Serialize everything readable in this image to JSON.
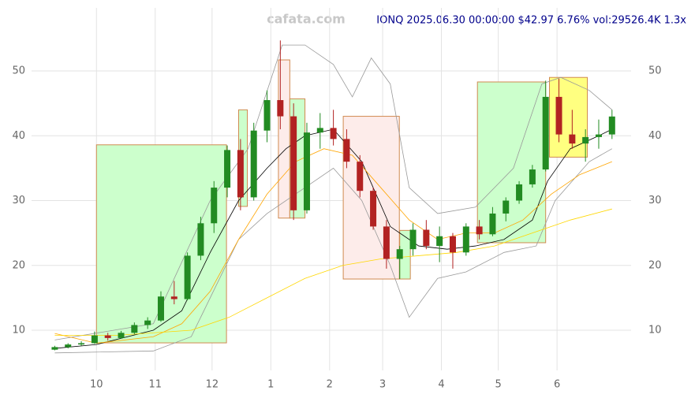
{
  "chart_data": {
    "type": "candlestick",
    "title": "IONQ 2025.06.30 00:00:00 $42.97 6.76% vol:29526.4K 1.3x",
    "watermark": "cafata.com",
    "xlim": [
      -3,
      305
    ],
    "ylim": [
      5.6,
      60
    ],
    "xticks": [
      {
        "value": 30,
        "label": "10"
      },
      {
        "value": 61,
        "label": "11"
      },
      {
        "value": 91,
        "label": "12"
      },
      {
        "value": 122,
        "label": "1"
      },
      {
        "value": 153,
        "label": "2"
      },
      {
        "value": 181,
        "label": "3"
      },
      {
        "value": 212,
        "label": "4"
      },
      {
        "value": 242,
        "label": "5"
      },
      {
        "value": 273,
        "label": "6"
      }
    ],
    "yticks": [
      10,
      20,
      30,
      40,
      50
    ],
    "grid": true,
    "up_color": "#228b22",
    "down_color": "#b22222",
    "x": [
      8,
      15,
      22,
      29,
      36,
      43,
      50,
      57,
      64,
      71,
      78,
      85,
      92,
      99,
      106,
      113,
      120,
      127,
      134,
      141,
      148,
      155,
      162,
      169,
      176,
      183,
      190,
      197,
      204,
      211,
      218,
      225,
      232,
      239,
      246,
      253,
      260,
      267,
      274,
      281,
      288,
      295,
      302
    ],
    "open": [
      7.0,
      7.4,
      7.8,
      8.0,
      9.2,
      8.8,
      9.6,
      10.8,
      11.5,
      15.2,
      14.8,
      21.5,
      26.5,
      32.0,
      37.8,
      30.5,
      40.8,
      45.5,
      43.0,
      28.5,
      40.5,
      41.2,
      39.5,
      36.0,
      31.5,
      26.0,
      21.0,
      22.5,
      25.5,
      23.0,
      24.5,
      22.0,
      26.0,
      24.8,
      28.0,
      30.0,
      32.5,
      34.8,
      46.0,
      40.2,
      38.8,
      39.8,
      40.2
    ],
    "high": [
      7.6,
      8.0,
      8.3,
      9.8,
      9.6,
      9.9,
      11.2,
      12.0,
      16.0,
      17.6,
      22.0,
      27.5,
      33.0,
      38.5,
      39.5,
      42.0,
      47.0,
      54.7,
      45.0,
      42.0,
      43.5,
      44.0,
      41.0,
      37.0,
      32.0,
      27.0,
      23.0,
      26.5,
      27.0,
      26.0,
      25.0,
      26.5,
      27.0,
      29.0,
      30.5,
      33.0,
      35.5,
      48.5,
      48.8,
      44.0,
      41.0,
      42.5,
      44.0
    ],
    "low": [
      6.9,
      7.2,
      7.6,
      7.9,
      8.4,
      8.7,
      9.4,
      10.2,
      11.3,
      14.0,
      14.6,
      20.8,
      25.0,
      30.5,
      28.5,
      30.0,
      39.0,
      41.0,
      27.0,
      28.0,
      38.0,
      38.5,
      35.0,
      30.5,
      25.5,
      19.5,
      17.9,
      21.5,
      22.5,
      20.5,
      19.5,
      21.5,
      24.0,
      24.5,
      26.8,
      29.5,
      32.0,
      34.5,
      39.0,
      38.0,
      36.0,
      38.0,
      39.5
    ],
    "close": [
      7.4,
      7.8,
      8.0,
      9.2,
      8.8,
      9.6,
      10.8,
      11.5,
      15.2,
      14.8,
      21.5,
      26.5,
      32.0,
      37.8,
      30.5,
      40.8,
      45.5,
      43.0,
      28.5,
      40.5,
      41.2,
      39.5,
      36.0,
      31.5,
      26.0,
      21.0,
      22.5,
      25.5,
      23.0,
      24.5,
      22.0,
      26.0,
      24.8,
      28.0,
      30.0,
      32.5,
      34.8,
      46.0,
      40.2,
      38.8,
      39.8,
      40.2,
      42.97
    ],
    "zones": [
      {
        "x": [
          30,
          98.6
        ],
        "y": [
          8.05,
          38.6
        ],
        "color": "#ccffcc"
      },
      {
        "x": [
          105,
          109.6
        ],
        "y": [
          29.1,
          44
        ],
        "color": "#ccffcc"
      },
      {
        "x": [
          126,
          132
        ],
        "y": [
          27.3,
          51.7
        ],
        "color": "#fdecea"
      },
      {
        "x": [
          132,
          140
        ],
        "y": [
          27.3,
          45.7
        ],
        "color": "#ccffcc"
      },
      {
        "x": [
          160.2,
          189.8
        ],
        "y": [
          17.9,
          43
        ],
        "color": "#fdecea"
      },
      {
        "x": [
          190,
          195.6
        ],
        "y": [
          17.9,
          25.4
        ],
        "color": "#ccffcc"
      },
      {
        "x": [
          231,
          267
        ],
        "y": [
          23.5,
          48.3
        ],
        "color": "#ccffcc"
      },
      {
        "x": [
          269,
          289
        ],
        "y": [
          36.7,
          49
        ],
        "color": "#ffff80"
      }
    ],
    "lines": [
      {
        "color": "#999999",
        "x": [
          8,
          60,
          90,
          110,
          128,
          140,
          155,
          165,
          175,
          185,
          195,
          210,
          230,
          250,
          265,
          275,
          290,
          302
        ],
        "values": [
          8.5,
          11,
          30,
          38,
          54,
          54,
          51,
          46,
          52,
          48,
          32,
          28,
          29,
          35,
          48,
          49,
          47,
          44
        ]
      },
      {
        "color": "#999999",
        "x": [
          8,
          60,
          80,
          95,
          105,
          120,
          140,
          155,
          170,
          185,
          195,
          210,
          225,
          245,
          262,
          272,
          290,
          302
        ],
        "values": [
          6.5,
          6.8,
          9,
          18,
          24,
          28,
          32,
          35,
          30,
          20,
          12,
          18,
          19,
          22,
          23,
          30,
          36,
          38
        ]
      },
      {
        "color": "#000000",
        "x": [
          8,
          30,
          60,
          75,
          90,
          105,
          120,
          130,
          140,
          155,
          170,
          185,
          200,
          215,
          230,
          245,
          260,
          268,
          280,
          295,
          302
        ],
        "values": [
          7.2,
          7.8,
          10,
          13,
          22,
          30,
          35,
          38,
          40,
          41,
          36,
          26,
          23,
          22.5,
          23,
          24,
          27,
          33,
          38,
          40,
          41
        ]
      },
      {
        "color": "#ffa500",
        "x": [
          8,
          30,
          60,
          75,
          90,
          105,
          120,
          135,
          150,
          165,
          180,
          195,
          210,
          225,
          240,
          255,
          270,
          285,
          302
        ],
        "values": [
          9.5,
          8,
          9,
          11,
          16,
          24,
          31,
          36,
          38,
          37,
          32,
          27,
          24,
          25,
          25,
          27,
          31,
          34,
          36
        ]
      },
      {
        "color": "#ffd700",
        "x": [
          8,
          40,
          80,
          100,
          120,
          140,
          160,
          180,
          200,
          220,
          240,
          260,
          280,
          302
        ],
        "values": [
          9.2,
          9.2,
          10,
          12,
          15,
          18,
          20,
          21,
          21.5,
          22,
          23,
          25,
          27,
          28.7
        ]
      }
    ]
  }
}
